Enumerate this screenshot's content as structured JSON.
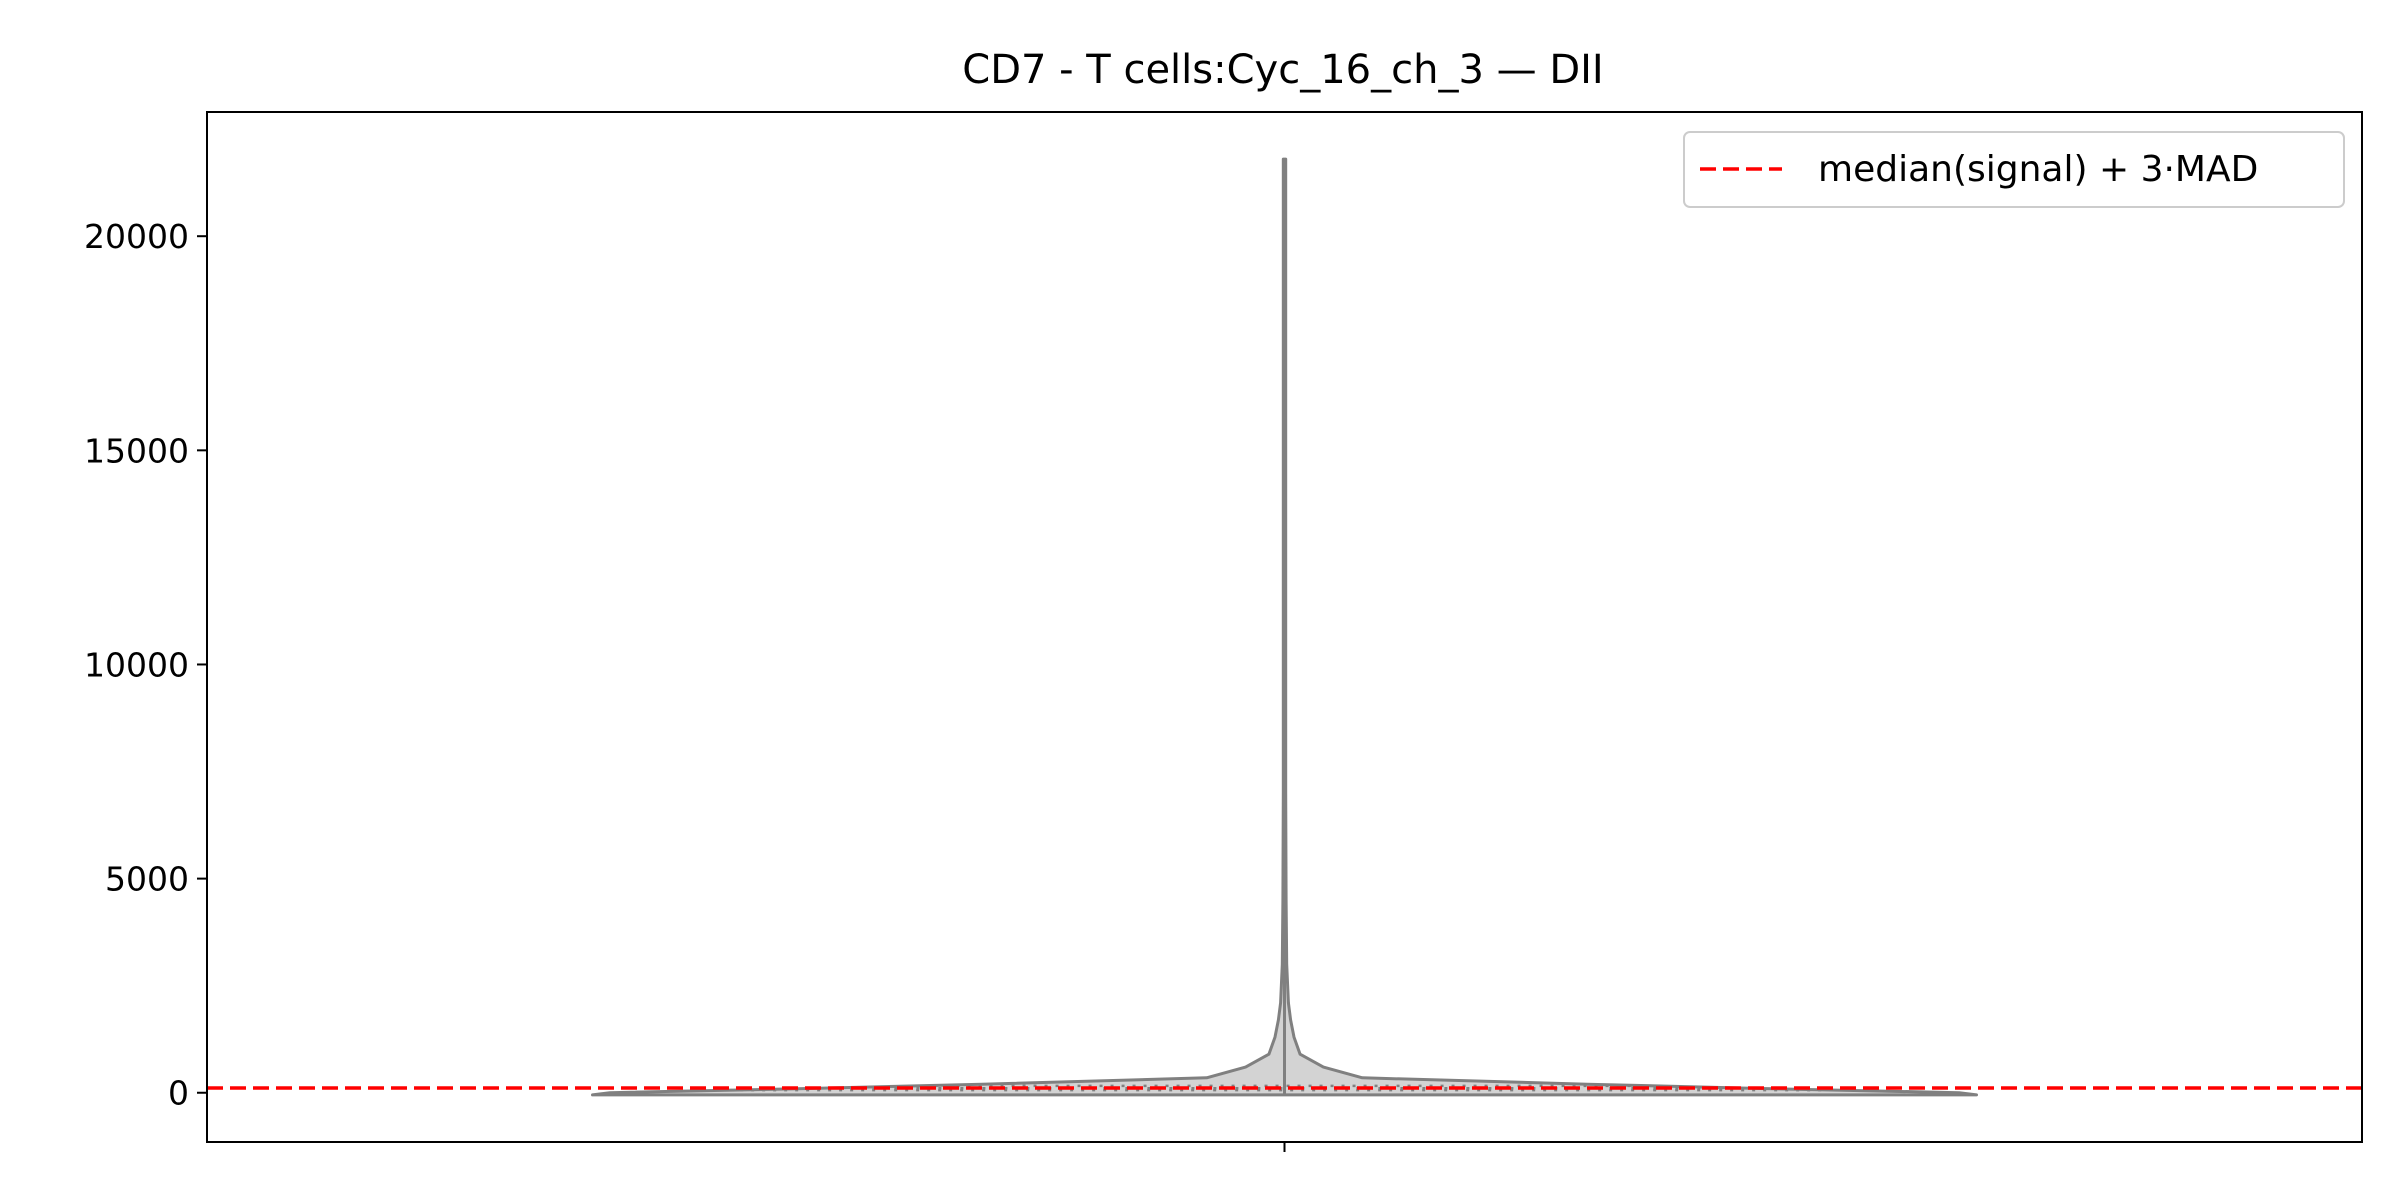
{
  "chart_data": {
    "type": "violin",
    "title": "CD7 - T cells:Cyc_16_ch_3 — DII",
    "xlabel": "",
    "ylabel": "",
    "ylim": [
      -1150,
      22900
    ],
    "yticks": [
      0,
      5000,
      10000,
      15000,
      20000
    ],
    "ytick_labels": [
      "0",
      "5000",
      "10000",
      "15000",
      "20000"
    ],
    "grid": false,
    "legend": {
      "location": "upper right",
      "entries": [
        {
          "label": "median(signal) + 3·MAD",
          "color": "#ff0000",
          "style": "dashed"
        }
      ]
    },
    "threshold": {
      "value": 110,
      "color": "#ff0000",
      "style": "dashed"
    },
    "violin": {
      "fill_color": "#d3d3d3",
      "edge_color": "#808080",
      "min": -50,
      "max": 21800,
      "quartiles": [
        60,
        105,
        160
      ],
      "inner_box_range": [
        -50,
        5600
      ],
      "profile": [
        {
          "y": -50,
          "half_width": 0.8
        },
        {
          "y": 0,
          "half_width": 0.78
        },
        {
          "y": 100,
          "half_width": 0.55
        },
        {
          "y": 200,
          "half_width": 0.35
        },
        {
          "y": 350,
          "half_width": 0.09
        },
        {
          "y": 600,
          "half_width": 0.045
        },
        {
          "y": 900,
          "half_width": 0.018
        },
        {
          "y": 1300,
          "half_width": 0.011
        },
        {
          "y": 1700,
          "half_width": 0.007
        },
        {
          "y": 2100,
          "half_width": 0.0045
        },
        {
          "y": 3000,
          "half_width": 0.0025
        },
        {
          "y": 4500,
          "half_width": 0.0018
        },
        {
          "y": 7000,
          "half_width": 0.0014
        },
        {
          "y": 21800,
          "half_width": 0.0014
        }
      ]
    }
  }
}
